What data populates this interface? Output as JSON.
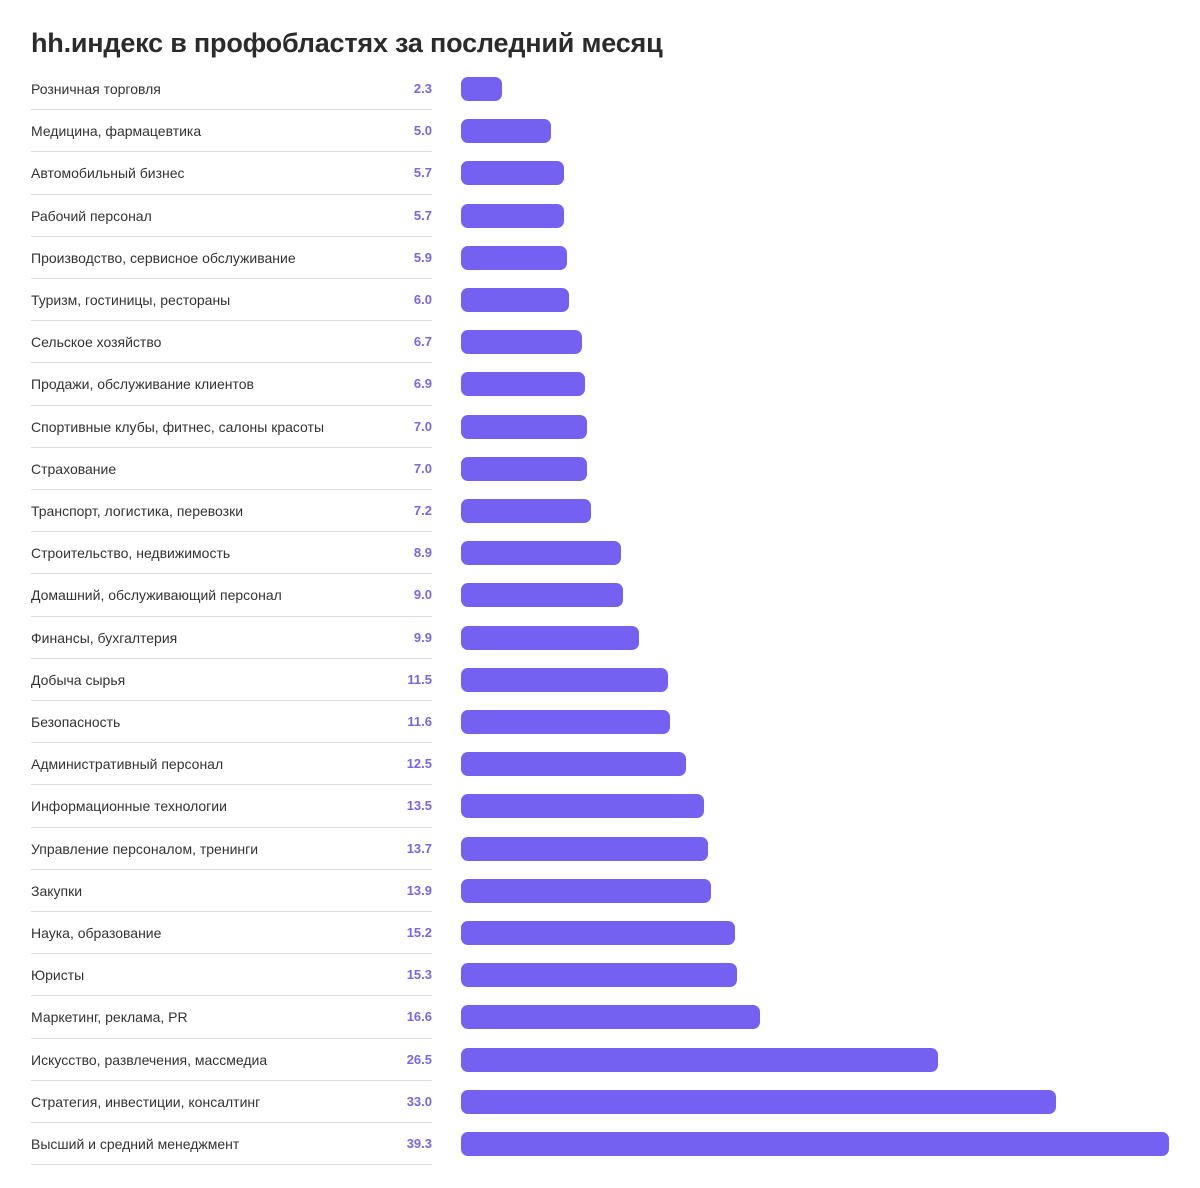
{
  "title": "hh.индекс в профобластях за последний месяц",
  "chart_data": {
    "type": "bar",
    "orientation": "horizontal",
    "title": "hh.индекс в профобластях за последний месяц",
    "bar_color": "#7461f2",
    "value_color": "#7a66e0",
    "xlim": [
      0,
      39.3
    ],
    "grid": false,
    "categories": [
      "Розничная торговля",
      "Медицина, фармацевтика",
      "Автомобильный бизнес",
      "Рабочий персонал",
      "Производство, сервисное обслуживание",
      "Туризм, гостиницы, рестораны",
      "Сельское хозяйство",
      "Продажи, обслуживание клиентов",
      "Спортивные клубы, фитнес, салоны красоты",
      "Страхование",
      "Транспорт, логистика, перевозки",
      "Строительство, недвижимость",
      "Домашний, обслуживающий персонал",
      "Финансы, бухгалтерия",
      "Добыча сырья",
      "Безопасность",
      "Административный персонал",
      "Информационные технологии",
      "Управление персоналом, тренинги",
      "Закупки",
      "Наука, образование",
      "Юристы",
      "Маркетинг, реклама, PR",
      "Искусство, развлечения, массмедиа",
      "Стратегия, инвестиции, консалтинг",
      "Высший и средний менеджмент"
    ],
    "values": [
      2.3,
      5.0,
      5.7,
      5.7,
      5.9,
      6.0,
      6.7,
      6.9,
      7.0,
      7.0,
      7.2,
      8.9,
      9.0,
      9.9,
      11.5,
      11.6,
      12.5,
      13.5,
      13.7,
      13.9,
      15.2,
      15.3,
      16.6,
      26.5,
      33.0,
      39.3
    ],
    "value_labels": [
      "2.3",
      "5.0",
      "5.7",
      "5.7",
      "5.9",
      "6.0",
      "6.7",
      "6.9",
      "7.0",
      "7.0",
      "7.2",
      "8.9",
      "9.0",
      "9.9",
      "11.5",
      "11.6",
      "12.5",
      "13.5",
      "13.7",
      "13.9",
      "15.2",
      "15.3",
      "16.6",
      "26.5",
      "33.0",
      "39.3"
    ]
  }
}
